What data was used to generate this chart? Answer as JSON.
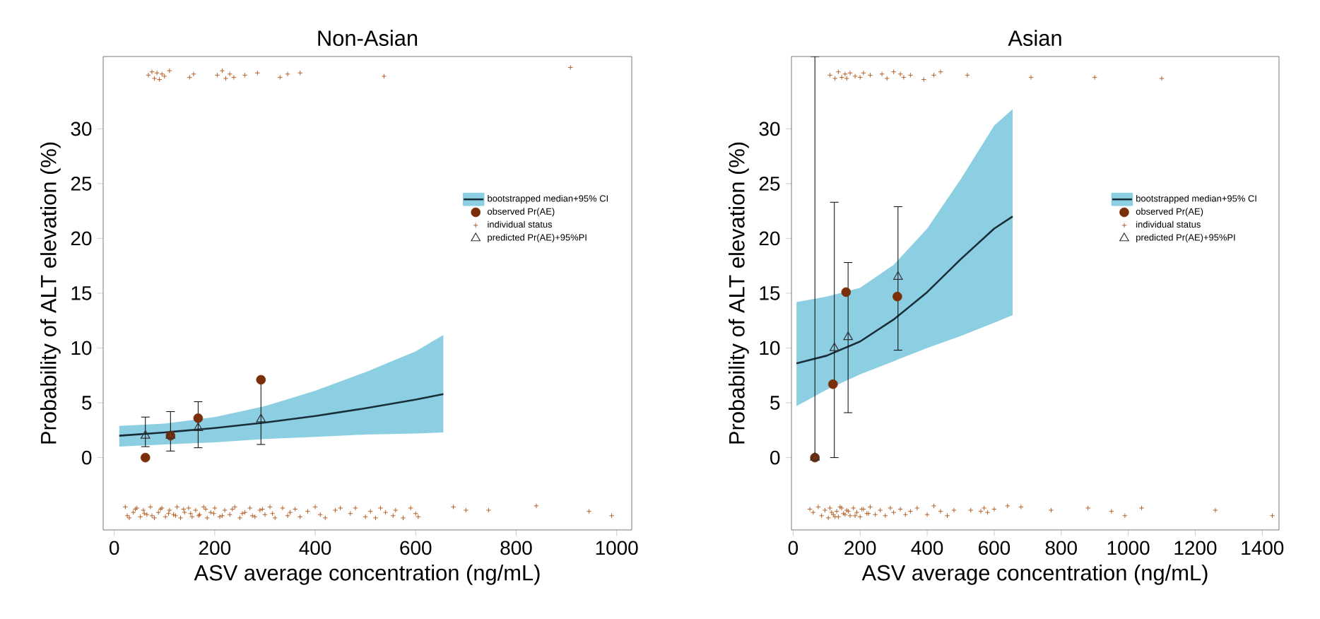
{
  "chart_data": [
    {
      "type": "scatter",
      "title": "Non-Asian",
      "xlabel": "ASV average concentration (ng/mL)",
      "ylabel": "Probability of ALT elevation (%)",
      "xlim": [
        -22,
        1030
      ],
      "ylim": [
        -6.6,
        36.6
      ],
      "xticks": [
        0,
        200,
        400,
        600,
        800,
        1000
      ],
      "yticks": [
        0,
        5,
        10,
        15,
        20,
        25,
        30
      ],
      "legend": "right",
      "series": [
        {
          "name": "bootstrapped median+95% CI",
          "type": "line",
          "marker": "none",
          "color": "#1a2e3a",
          "x": [
            10,
            100,
            200,
            300,
            400,
            500,
            600,
            655
          ],
          "values": [
            2.0,
            2.3,
            2.7,
            3.2,
            3.8,
            4.5,
            5.3,
            5.8
          ],
          "lower": [
            1.0,
            1.2,
            1.4,
            1.7,
            1.9,
            2.1,
            2.2,
            2.3
          ],
          "upper": [
            2.9,
            3.1,
            3.7,
            4.7,
            6.1,
            7.8,
            9.7,
            11.2
          ]
        },
        {
          "name": "observed Pr(AE)",
          "marker": "circle",
          "color": "#7a2e0a",
          "x": [
            62,
            112,
            167,
            292
          ],
          "values": [
            0,
            2.0,
            3.6,
            7.1
          ]
        },
        {
          "name": "individual status",
          "marker": "cross",
          "color": "#b5622a",
          "x": [
            22,
            30,
            38,
            45,
            52,
            58,
            65,
            72,
            80,
            88,
            95,
            102,
            110,
            118,
            125,
            132,
            140,
            148,
            155,
            162,
            170,
            178,
            185,
            192,
            200,
            210,
            220,
            230,
            240,
            250,
            260,
            270,
            280,
            290,
            300,
            310,
            320,
            26,
            42,
            60,
            75,
            92,
            108,
            122,
            138,
            152,
            168,
            182,
            198,
            215,
            235,
            255,
            275,
            295,
            315,
            335,
            345,
            350,
            360,
            370,
            385,
            400,
            410,
            420,
            440,
            450,
            470,
            480,
            500,
            510,
            520,
            530,
            540,
            555,
            560,
            575,
            590,
            600,
            605,
            675,
            700,
            745,
            840,
            945,
            990,
            68,
            75,
            80,
            85,
            90,
            95,
            100,
            110,
            150,
            158,
            205,
            215,
            222,
            230,
            238,
            260,
            285,
            330,
            345,
            370,
            537,
            908
          ],
          "values": [
            -4.5,
            -5.5,
            -5.0,
            -4.6,
            -5.4,
            -4.8,
            -5.2,
            -4.5,
            -5.5,
            -5.0,
            -4.6,
            -5.4,
            -4.8,
            -5.2,
            -4.5,
            -5.5,
            -5.0,
            -4.6,
            -5.4,
            -4.8,
            -5.2,
            -4.5,
            -5.5,
            -5.0,
            -4.6,
            -5.4,
            -4.8,
            -5.2,
            -4.5,
            -5.5,
            -5.0,
            -4.6,
            -5.4,
            -4.8,
            -5.2,
            -4.5,
            -5.5,
            -5.3,
            -4.7,
            -5.1,
            -5.3,
            -4.7,
            -5.1,
            -5.3,
            -4.7,
            -5.1,
            -5.3,
            -4.7,
            -5.1,
            -5.3,
            -4.7,
            -5.1,
            -5.3,
            -4.7,
            -5.1,
            -4.6,
            -5.3,
            -5.0,
            -4.7,
            -5.4,
            -4.9,
            -4.5,
            -5.2,
            -5.5,
            -4.8,
            -4.6,
            -5.1,
            -4.6,
            -5.4,
            -4.9,
            -5.5,
            -4.6,
            -5.0,
            -5.3,
            -4.8,
            -5.5,
            -4.6,
            -5.1,
            -5.4,
            -4.5,
            -4.8,
            -4.8,
            -4.4,
            -4.9,
            -5.3,
            34.9,
            35.2,
            34.6,
            35.1,
            34.5,
            35.0,
            34.8,
            35.3,
            34.7,
            35.0,
            34.9,
            35.3,
            34.6,
            35.0,
            34.7,
            34.9,
            35.1,
            34.7,
            35.0,
            35.1,
            34.8,
            35.6
          ]
        },
        {
          "name": "predicted Pr(AE)+95%PI",
          "marker": "triangle",
          "color": "#333333",
          "x": [
            62,
            112,
            167,
            292
          ],
          "values": [
            2.0,
            2.0,
            2.7,
            3.5
          ],
          "errors": [
            [
              1.0,
              3.7
            ],
            [
              0.6,
              4.2
            ],
            [
              0.9,
              5.1
            ],
            [
              1.2,
              7.1
            ]
          ]
        }
      ]
    },
    {
      "type": "scatter",
      "title": "Asian",
      "xlabel": "ASV average concentration (ng/mL)",
      "ylabel": "Probability of ALT elevation (%)",
      "xlim": [
        -5,
        1450
      ],
      "ylim": [
        -6.6,
        36.6
      ],
      "xticks": [
        0,
        200,
        400,
        600,
        800,
        1000,
        1200,
        1400
      ],
      "yticks": [
        0,
        5,
        10,
        15,
        20,
        25,
        30
      ],
      "legend": "right",
      "series": [
        {
          "name": "bootstrapped median+95% CI",
          "type": "line",
          "marker": "none",
          "color": "#1a2e3a",
          "x": [
            10,
            100,
            200,
            300,
            400,
            500,
            600,
            655
          ],
          "values": [
            8.6,
            9.3,
            10.6,
            12.6,
            15.1,
            18.1,
            20.9,
            22.0
          ],
          "lower": [
            4.7,
            6.2,
            7.6,
            8.8,
            10.0,
            11.1,
            12.3,
            13.0
          ],
          "upper": [
            14.2,
            14.7,
            15.5,
            17.6,
            20.9,
            25.4,
            30.3,
            31.8
          ]
        },
        {
          "name": "observed Pr(AE)",
          "marker": "circle",
          "color": "#7a2e0a",
          "x": [
            65,
            119,
            158,
            311
          ],
          "values": [
            0,
            6.7,
            15.1,
            14.7
          ]
        },
        {
          "name": "individual status",
          "marker": "cross",
          "color": "#b5622a",
          "x": [
            50,
            60,
            75,
            85,
            95,
            105,
            110,
            120,
            130,
            135,
            140,
            150,
            160,
            170,
            180,
            190,
            200,
            210,
            220,
            230,
            245,
            260,
            275,
            290,
            300,
            320,
            335,
            350,
            370,
            400,
            420,
            440,
            460,
            480,
            530,
            560,
            570,
            580,
            600,
            640,
            680,
            770,
            880,
            950,
            990,
            1040,
            1260,
            1430,
            115,
            125,
            145,
            155,
            165,
            185,
            205,
            225,
            110,
            125,
            135,
            145,
            155,
            160,
            170,
            185,
            200,
            210,
            230,
            265,
            280,
            300,
            320,
            330,
            350,
            390,
            420,
            440,
            520,
            710,
            900,
            1100
          ],
          "values": [
            -4.7,
            -5.0,
            -4.5,
            -5.3,
            -4.8,
            -5.5,
            -4.6,
            -5.2,
            -4.9,
            -5.4,
            -4.5,
            -5.1,
            -4.8,
            -5.3,
            -4.6,
            -5.0,
            -5.4,
            -4.7,
            -5.1,
            -4.5,
            -5.2,
            -4.8,
            -5.3,
            -4.6,
            -5.0,
            -4.7,
            -5.2,
            -4.9,
            -4.6,
            -5.2,
            -4.4,
            -4.9,
            -5.3,
            -4.8,
            -4.8,
            -4.9,
            -4.6,
            -5.0,
            -4.7,
            -4.4,
            -4.5,
            -4.8,
            -4.6,
            -4.9,
            -5.3,
            -4.6,
            -4.8,
            -5.3,
            -5.0,
            -5.4,
            -4.6,
            -5.2,
            -4.9,
            -5.3,
            -4.7,
            -5.1,
            34.9,
            34.6,
            35.2,
            34.7,
            35.0,
            34.6,
            35.1,
            34.8,
            34.7,
            35.1,
            34.9,
            35.0,
            34.6,
            35.2,
            35.0,
            34.7,
            34.9,
            34.5,
            34.9,
            35.2,
            34.9,
            34.7,
            34.7,
            34.6
          ]
        },
        {
          "name": "predicted Pr(AE)+95%PI",
          "marker": "triangle",
          "color": "#333333",
          "x": [
            65,
            123,
            164,
            313
          ],
          "values": [
            0,
            10.0,
            11.0,
            16.5
          ],
          "errors": [
            [
              0,
              36.6
            ],
            [
              0,
              23.3
            ],
            [
              4.1,
              17.8
            ],
            [
              9.8,
              22.9
            ]
          ]
        }
      ]
    }
  ]
}
